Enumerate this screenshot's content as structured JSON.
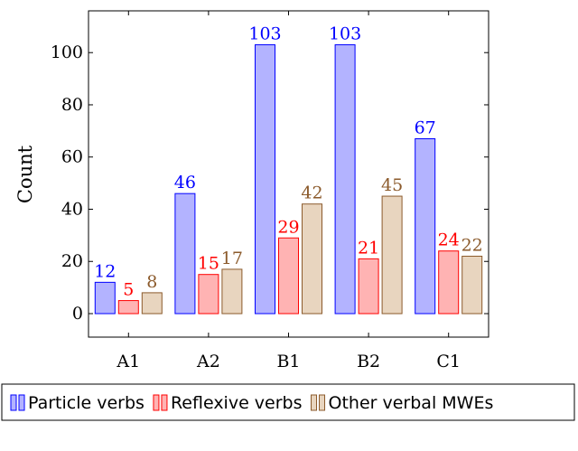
{
  "chart_data": {
    "type": "bar",
    "categories": [
      "A1",
      "A2",
      "B1",
      "B2",
      "C1"
    ],
    "series": [
      {
        "name": "Particle verbs",
        "values": [
          12,
          46,
          103,
          103,
          67
        ],
        "fill": "#b3b3ff",
        "stroke": "#0000ff",
        "label_color": "#0000ff"
      },
      {
        "name": "Reflexive verbs",
        "values": [
          5,
          15,
          29,
          21,
          24
        ],
        "fill": "#ffb3b3",
        "stroke": "#ff0000",
        "label_color": "#ff0000"
      },
      {
        "name": "Other verbal MWEs",
        "values": [
          8,
          17,
          42,
          45,
          22
        ],
        "fill": "#e8d5bf",
        "stroke": "#8b5a2b",
        "label_color": "#8b5a2b"
      }
    ],
    "xlabel": "",
    "ylabel": "Count",
    "ylim": [
      -9,
      116
    ],
    "yticks": [
      0,
      20,
      40,
      60,
      80,
      100
    ],
    "grid": false,
    "legend_position": "bottom"
  }
}
